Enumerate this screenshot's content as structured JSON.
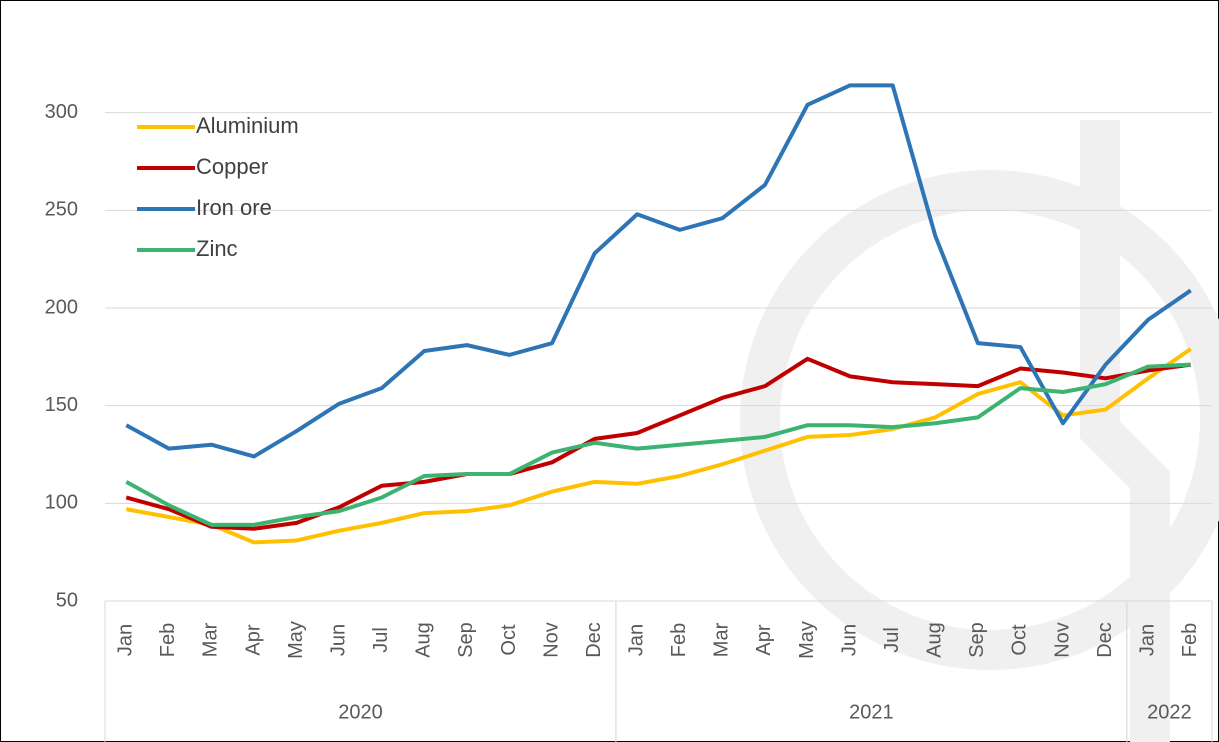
{
  "chart_data": {
    "type": "line",
    "categories": [
      "Jan",
      "Feb",
      "Mar",
      "Apr",
      "May",
      "Jun",
      "Jul",
      "Aug",
      "Sep",
      "Oct",
      "Nov",
      "Dec",
      "Jan",
      "Feb",
      "Mar",
      "Apr",
      "May",
      "Jun",
      "Jul",
      "Aug",
      "Sep",
      "Oct",
      "Nov",
      "Dec",
      "Jan",
      "Feb"
    ],
    "x_groups": [
      {
        "label": "2020",
        "start": 0,
        "end": 11
      },
      {
        "label": "2021",
        "start": 12,
        "end": 23
      },
      {
        "label": "2022",
        "start": 24,
        "end": 25
      }
    ],
    "series": [
      {
        "name": "Aluminium",
        "color": "#ffc000",
        "values": [
          97,
          93,
          89,
          80,
          81,
          86,
          90,
          95,
          96,
          99,
          106,
          111,
          110,
          114,
          120,
          127,
          134,
          135,
          138,
          144,
          156,
          162,
          145,
          148,
          164,
          179
        ]
      },
      {
        "name": "Copper",
        "color": "#c00000",
        "values": [
          103,
          97,
          88,
          87,
          90,
          98,
          109,
          111,
          115,
          115,
          121,
          133,
          136,
          145,
          154,
          160,
          174,
          165,
          162,
          161,
          160,
          169,
          167,
          164,
          168,
          171
        ]
      },
      {
        "name": "Iron ore",
        "color": "#2e75b6",
        "values": [
          140,
          128,
          130,
          124,
          137,
          151,
          159,
          178,
          181,
          176,
          182,
          228,
          248,
          240,
          246,
          263,
          304,
          314,
          314,
          237,
          182,
          180,
          141,
          171,
          194,
          209
        ]
      },
      {
        "name": "Zinc",
        "color": "#3cb371",
        "values": [
          111,
          99,
          89,
          89,
          93,
          96,
          103,
          114,
          115,
          115,
          126,
          131,
          128,
          130,
          132,
          134,
          140,
          140,
          139,
          141,
          144,
          159,
          157,
          161,
          170,
          171
        ]
      }
    ],
    "ylim": [
      50,
      350
    ],
    "yticks": [
      50,
      100,
      150,
      200,
      250,
      300
    ],
    "grid": true,
    "legend": "top-left"
  }
}
